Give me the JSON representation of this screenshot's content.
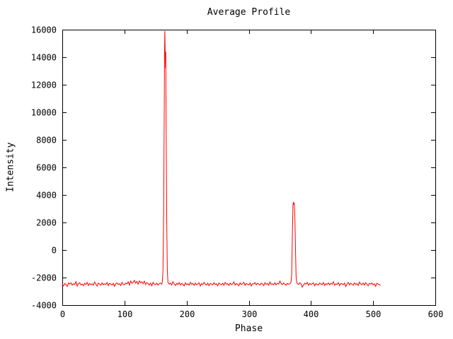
{
  "page": {
    "background": "#ffffff"
  },
  "chart_data": {
    "type": "line",
    "title": "Average Profile",
    "xlabel": "Phase",
    "ylabel": "Intensity",
    "xlim": [
      0,
      600
    ],
    "ylim": [
      -4000,
      16000
    ],
    "x_ticks": [
      0,
      100,
      200,
      300,
      400,
      500,
      600
    ],
    "y_ticks": [
      -4000,
      -2000,
      0,
      2000,
      4000,
      6000,
      8000,
      10000,
      12000,
      14000,
      16000
    ],
    "grid": false,
    "legend_position": "none",
    "line_color": "#ff0000",
    "axis_color": "#000000",
    "series": [
      {
        "name": "average_profile",
        "points": [
          [
            0,
            -2480
          ],
          [
            2,
            -2600
          ],
          [
            4,
            -2430
          ],
          [
            6,
            -2520
          ],
          [
            8,
            -2650
          ],
          [
            10,
            -2400
          ],
          [
            12,
            -2480
          ],
          [
            14,
            -2380
          ],
          [
            16,
            -2560
          ],
          [
            18,
            -2450
          ],
          [
            20,
            -2500
          ],
          [
            22,
            -2300
          ],
          [
            24,
            -2620
          ],
          [
            26,
            -2440
          ],
          [
            28,
            -2380
          ],
          [
            30,
            -2540
          ],
          [
            32,
            -2470
          ],
          [
            34,
            -2600
          ],
          [
            36,
            -2420
          ],
          [
            38,
            -2500
          ],
          [
            40,
            -2350
          ],
          [
            42,
            -2580
          ],
          [
            44,
            -2430
          ],
          [
            46,
            -2510
          ],
          [
            48,
            -2460
          ],
          [
            50,
            -2550
          ],
          [
            52,
            -2320
          ],
          [
            54,
            -2480
          ],
          [
            56,
            -2620
          ],
          [
            58,
            -2400
          ],
          [
            60,
            -2470
          ],
          [
            62,
            -2560
          ],
          [
            64,
            -2380
          ],
          [
            66,
            -2530
          ],
          [
            68,
            -2450
          ],
          [
            70,
            -2500
          ],
          [
            72,
            -2360
          ],
          [
            74,
            -2590
          ],
          [
            76,
            -2410
          ],
          [
            78,
            -2480
          ],
          [
            80,
            -2550
          ],
          [
            82,
            -2420
          ],
          [
            84,
            -2640
          ],
          [
            86,
            -2460
          ],
          [
            88,
            -2390
          ],
          [
            90,
            -2510
          ],
          [
            92,
            -2440
          ],
          [
            94,
            -2580
          ],
          [
            96,
            -2350
          ],
          [
            98,
            -2490
          ],
          [
            100,
            -2530
          ],
          [
            102,
            -2400
          ],
          [
            104,
            -2460
          ],
          [
            106,
            -2300
          ],
          [
            108,
            -2550
          ],
          [
            110,
            -2250
          ],
          [
            112,
            -2420
          ],
          [
            114,
            -2350
          ],
          [
            116,
            -2200
          ],
          [
            118,
            -2400
          ],
          [
            120,
            -2280
          ],
          [
            122,
            -2480
          ],
          [
            124,
            -2240
          ],
          [
            126,
            -2380
          ],
          [
            128,
            -2300
          ],
          [
            130,
            -2450
          ],
          [
            132,
            -2260
          ],
          [
            134,
            -2500
          ],
          [
            136,
            -2370
          ],
          [
            138,
            -2430
          ],
          [
            140,
            -2550
          ],
          [
            142,
            -2400
          ],
          [
            144,
            -2600
          ],
          [
            146,
            -2350
          ],
          [
            148,
            -2470
          ],
          [
            150,
            -2520
          ],
          [
            152,
            -2410
          ],
          [
            154,
            -2560
          ],
          [
            156,
            -2440
          ],
          [
            158,
            -2390
          ],
          [
            160,
            -2490
          ],
          [
            161,
            -2300
          ],
          [
            162,
            -1400
          ],
          [
            163,
            2500
          ],
          [
            164,
            9500
          ],
          [
            164.5,
            14600
          ],
          [
            165,
            15900
          ],
          [
            165.5,
            14200
          ],
          [
            166,
            13200
          ],
          [
            166.5,
            14400
          ],
          [
            167,
            9000
          ],
          [
            168,
            2000
          ],
          [
            169,
            -1500
          ],
          [
            170,
            -2350
          ],
          [
            172,
            -2480
          ],
          [
            174,
            -2400
          ],
          [
            176,
            -2540
          ],
          [
            178,
            -2300
          ],
          [
            180,
            -2460
          ],
          [
            182,
            -2580
          ],
          [
            184,
            -2420
          ],
          [
            186,
            -2500
          ],
          [
            188,
            -2360
          ],
          [
            190,
            -2550
          ],
          [
            192,
            -2430
          ],
          [
            194,
            -2480
          ],
          [
            196,
            -2600
          ],
          [
            198,
            -2380
          ],
          [
            200,
            -2520
          ],
          [
            202,
            -2450
          ],
          [
            204,
            -2560
          ],
          [
            206,
            -2340
          ],
          [
            208,
            -2490
          ],
          [
            210,
            -2420
          ],
          [
            212,
            -2570
          ],
          [
            214,
            -2400
          ],
          [
            216,
            -2530
          ],
          [
            218,
            -2460
          ],
          [
            220,
            -2380
          ],
          [
            222,
            -2620
          ],
          [
            224,
            -2440
          ],
          [
            226,
            -2500
          ],
          [
            228,
            -2350
          ],
          [
            230,
            -2480
          ],
          [
            232,
            -2550
          ],
          [
            234,
            -2410
          ],
          [
            236,
            -2590
          ],
          [
            238,
            -2430
          ],
          [
            240,
            -2470
          ],
          [
            242,
            -2540
          ],
          [
            244,
            -2370
          ],
          [
            246,
            -2510
          ],
          [
            248,
            -2450
          ],
          [
            250,
            -2600
          ],
          [
            252,
            -2390
          ],
          [
            254,
            -2480
          ],
          [
            256,
            -2530
          ],
          [
            258,
            -2420
          ],
          [
            260,
            -2560
          ],
          [
            262,
            -2350
          ],
          [
            264,
            -2490
          ],
          [
            266,
            -2440
          ],
          [
            268,
            -2580
          ],
          [
            270,
            -2400
          ],
          [
            272,
            -2520
          ],
          [
            274,
            -2460
          ],
          [
            276,
            -2310
          ],
          [
            278,
            -2550
          ],
          [
            280,
            -2430
          ],
          [
            282,
            -2480
          ],
          [
            284,
            -2600
          ],
          [
            286,
            -2380
          ],
          [
            288,
            -2510
          ],
          [
            290,
            -2450
          ],
          [
            292,
            -2340
          ],
          [
            294,
            -2570
          ],
          [
            296,
            -2420
          ],
          [
            298,
            -2490
          ],
          [
            300,
            -2540
          ],
          [
            302,
            -2390
          ],
          [
            304,
            -2610
          ],
          [
            306,
            -2440
          ],
          [
            308,
            -2470
          ],
          [
            310,
            -2360
          ],
          [
            312,
            -2530
          ],
          [
            314,
            -2410
          ],
          [
            316,
            -2480
          ],
          [
            318,
            -2550
          ],
          [
            320,
            -2400
          ],
          [
            322,
            -2460
          ],
          [
            324,
            -2590
          ],
          [
            326,
            -2370
          ],
          [
            328,
            -2500
          ],
          [
            330,
            -2430
          ],
          [
            332,
            -2560
          ],
          [
            334,
            -2320
          ],
          [
            336,
            -2490
          ],
          [
            338,
            -2450
          ],
          [
            340,
            -2520
          ],
          [
            342,
            -2380
          ],
          [
            344,
            -2540
          ],
          [
            346,
            -2410
          ],
          [
            348,
            -2470
          ],
          [
            350,
            -2250
          ],
          [
            352,
            -2430
          ],
          [
            354,
            -2510
          ],
          [
            356,
            -2390
          ],
          [
            358,
            -2480
          ],
          [
            360,
            -2560
          ],
          [
            362,
            -2420
          ],
          [
            364,
            -2490
          ],
          [
            366,
            -2450
          ],
          [
            368,
            -2330
          ],
          [
            369,
            -1800
          ],
          [
            370,
            900
          ],
          [
            371,
            3250
          ],
          [
            372,
            3500
          ],
          [
            372.5,
            3300
          ],
          [
            373,
            3420
          ],
          [
            374,
            2600
          ],
          [
            375,
            300
          ],
          [
            376,
            -1900
          ],
          [
            377,
            -2350
          ],
          [
            378,
            -2430
          ],
          [
            380,
            -2500
          ],
          [
            382,
            -2380
          ],
          [
            384,
            -2460
          ],
          [
            386,
            -2700
          ],
          [
            388,
            -2540
          ],
          [
            390,
            -2410
          ],
          [
            392,
            -2480
          ],
          [
            394,
            -2350
          ],
          [
            396,
            -2560
          ],
          [
            398,
            -2420
          ],
          [
            400,
            -2510
          ],
          [
            402,
            -2450
          ],
          [
            404,
            -2380
          ],
          [
            406,
            -2600
          ],
          [
            408,
            -2430
          ],
          [
            410,
            -2490
          ],
          [
            412,
            -2550
          ],
          [
            414,
            -2400
          ],
          [
            416,
            -2470
          ],
          [
            418,
            -2530
          ],
          [
            420,
            -2360
          ],
          [
            422,
            -2580
          ],
          [
            424,
            -2440
          ],
          [
            426,
            -2500
          ],
          [
            428,
            -2390
          ],
          [
            430,
            -2540
          ],
          [
            432,
            -2420
          ],
          [
            434,
            -2480
          ],
          [
            436,
            -2300
          ],
          [
            438,
            -2560
          ],
          [
            440,
            -2450
          ],
          [
            442,
            -2510
          ],
          [
            444,
            -2370
          ],
          [
            446,
            -2590
          ],
          [
            448,
            -2430
          ],
          [
            450,
            -2460
          ],
          [
            452,
            -2520
          ],
          [
            454,
            -2400
          ],
          [
            456,
            -2650
          ],
          [
            458,
            -2470
          ],
          [
            460,
            -2350
          ],
          [
            462,
            -2540
          ],
          [
            464,
            -2410
          ],
          [
            466,
            -2490
          ],
          [
            468,
            -2560
          ],
          [
            470,
            -2380
          ],
          [
            472,
            -2500
          ],
          [
            474,
            -2440
          ],
          [
            476,
            -2580
          ],
          [
            478,
            -2330
          ],
          [
            480,
            -2460
          ],
          [
            482,
            -2520
          ],
          [
            484,
            -2400
          ],
          [
            486,
            -2550
          ],
          [
            488,
            -2370
          ],
          [
            490,
            -2480
          ],
          [
            492,
            -2600
          ],
          [
            494,
            -2420
          ],
          [
            496,
            -2470
          ],
          [
            498,
            -2390
          ],
          [
            500,
            -2530
          ],
          [
            502,
            -2450
          ],
          [
            504,
            -2640
          ],
          [
            506,
            -2410
          ],
          [
            508,
            -2480
          ],
          [
            510,
            -2520
          ],
          [
            512,
            -2560
          ]
        ]
      }
    ]
  }
}
